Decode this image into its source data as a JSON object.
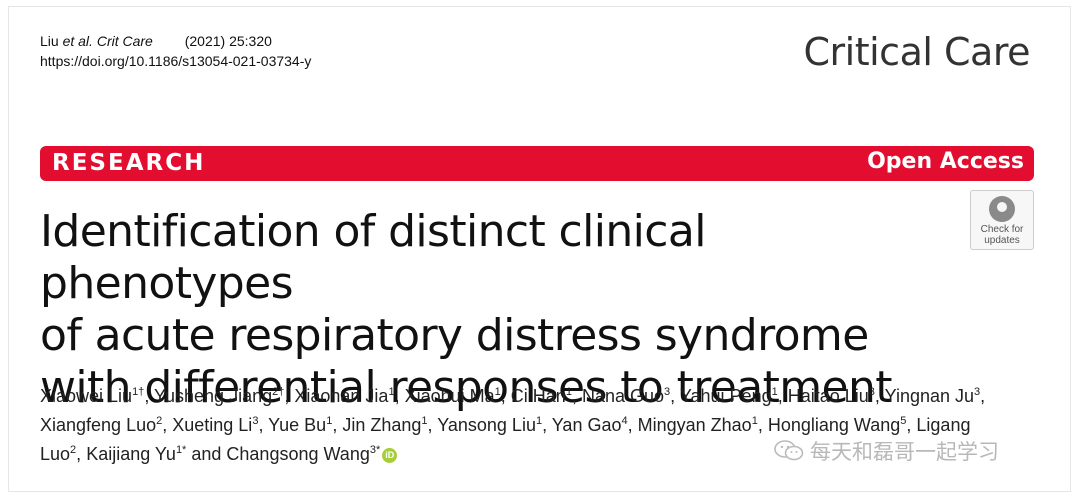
{
  "meta": {
    "citation_author": "Liu ",
    "citation_etal": "et al.",
    "citation_journal": "Crit Care",
    "citation_volume": "(2021) 25:320",
    "doi_url": "https://doi.org/10.1186/s13054-021-03734-y"
  },
  "brand": {
    "name": "Critical Care"
  },
  "banner": {
    "left": "RESEARCH",
    "right": "Open Access",
    "color": "#e30d2f"
  },
  "update_badge": {
    "line1": "Check for",
    "line2": "updates"
  },
  "title": {
    "line1": "Identification of distinct clinical phenotypes",
    "line2": "of acute respiratory distress syndrome",
    "line3": "with differential responses to treatment"
  },
  "authors": [
    {
      "name": "Xiaowei Liu",
      "sup": "1†"
    },
    {
      "name": "Yusheng Jiang",
      "sup": "2†"
    },
    {
      "name": "Xiaonan Jia",
      "sup": "1"
    },
    {
      "name": "Xiaohui Ma",
      "sup": "1"
    },
    {
      "name": "Ci Han",
      "sup": "1"
    },
    {
      "name": "Nana Guo",
      "sup": "3"
    },
    {
      "name": "Yahui Peng",
      "sup": "1"
    },
    {
      "name": "Haitao Liu",
      "sup": "3"
    },
    {
      "name": "Yingnan Ju",
      "sup": "3"
    },
    {
      "name": "Xiangfeng Luo",
      "sup": "2"
    },
    {
      "name": "Xueting Li",
      "sup": "3"
    },
    {
      "name": "Yue Bu",
      "sup": "1"
    },
    {
      "name": "Jin Zhang",
      "sup": "1"
    },
    {
      "name": "Yansong Liu",
      "sup": "1"
    },
    {
      "name": "Yan Gao",
      "sup": "4"
    },
    {
      "name": "Mingyan Zhao",
      "sup": "1"
    },
    {
      "name": "Hongliang Wang",
      "sup": "5"
    },
    {
      "name": "Ligang Luo",
      "sup": "2"
    },
    {
      "name": "Kaijiang Yu",
      "sup": "1*"
    },
    {
      "name": "Changsong Wang",
      "sup": "3*"
    }
  ],
  "authors_conjunction": "and",
  "orcid_label": "iD",
  "watermark": {
    "text": "每天和磊哥一起学习"
  }
}
